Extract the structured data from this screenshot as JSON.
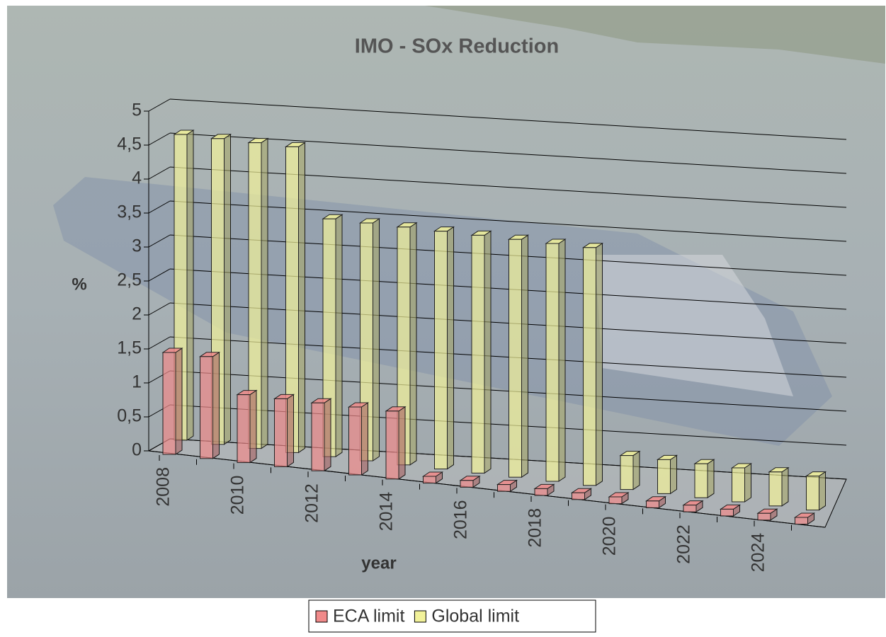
{
  "chart_data": {
    "type": "bar3d",
    "title": "IMO  - SOx Reduction",
    "x_label": "year",
    "y_label": "%",
    "categories": [
      "2008",
      null,
      "2010",
      null,
      "2012",
      null,
      "2014",
      null,
      "2016",
      null,
      "2018",
      null,
      "2020",
      null,
      "2022",
      null,
      "2024",
      null
    ],
    "series": [
      {
        "name": "ECA limit",
        "color": "#f08a8a",
        "values": [
          1.5,
          1.5,
          1.0,
          1.0,
          1.0,
          1.0,
          1.0,
          0.1,
          0.1,
          0.1,
          0.1,
          0.1,
          0.1,
          0.1,
          0.1,
          0.1,
          0.1,
          0.1
        ]
      },
      {
        "name": "Global limit",
        "color": "#f2f29a",
        "values": [
          4.5,
          4.5,
          4.5,
          4.5,
          3.5,
          3.5,
          3.5,
          3.5,
          3.5,
          3.5,
          3.5,
          3.5,
          0.5,
          0.5,
          0.5,
          0.5,
          0.5,
          0.5
        ]
      }
    ],
    "ylim": [
      0,
      5
    ],
    "yticks": [
      0,
      {
        "value": 0.5,
        "label": "0,5"
      },
      1,
      {
        "value": 1.5,
        "label": "1,5"
      },
      2,
      {
        "value": 2.5,
        "label": "2,5"
      },
      3,
      {
        "value": 3.5,
        "label": "3,5"
      },
      4,
      {
        "value": 4.5,
        "label": "4,5"
      },
      5
    ],
    "grid": true
  }
}
